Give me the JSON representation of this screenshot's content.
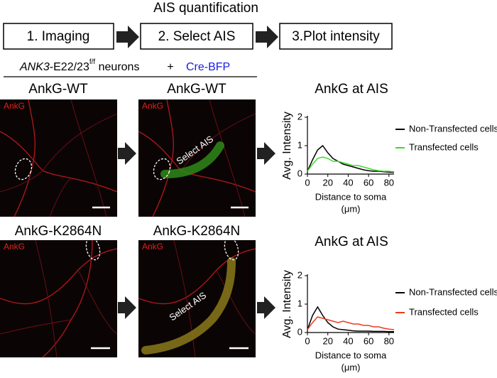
{
  "header": {
    "title": "AIS quantification",
    "steps": [
      "1. Imaging",
      "2. Select AIS",
      "3.Plot intensity"
    ]
  },
  "genotype": {
    "gene": "ANK3",
    "allele": "-E22/23",
    "superscript": "f/f",
    "cells": " neurons",
    "plus": "+",
    "construct": "Cre-BFP"
  },
  "rows": [
    {
      "images": [
        {
          "title": "AnkG-WT",
          "stain": "AnkG"
        },
        {
          "title": "AnkG-WT",
          "stain": "AnkG",
          "annotation": "Select AIS"
        }
      ]
    },
    {
      "images": [
        {
          "title": "AnkG-K2864N",
          "stain": "AnkG"
        },
        {
          "title": "AnkG-K2864N",
          "stain": "AnkG",
          "annotation": "Select AIS"
        }
      ]
    }
  ],
  "chart_data": [
    {
      "type": "line",
      "title": "AnkG at AIS",
      "ylabel": "Avg. Intensity",
      "xlabel": [
        "Distance to soma",
        "(μm)"
      ],
      "x": [
        0,
        5,
        10,
        15,
        20,
        25,
        30,
        35,
        40,
        45,
        50,
        55,
        60,
        65,
        70,
        75,
        80,
        85
      ],
      "series": [
        {
          "name": "Non-Transfected cells",
          "color": "#000000",
          "values": [
            0.1,
            0.5,
            0.85,
            1.0,
            0.75,
            0.55,
            0.45,
            0.35,
            0.3,
            0.25,
            0.2,
            0.15,
            0.12,
            0.1,
            0.1,
            0.08,
            0.07,
            0.06
          ]
        },
        {
          "name": "Transfected cells",
          "color": "#3ddc2c",
          "values": [
            0.1,
            0.35,
            0.55,
            0.6,
            0.55,
            0.45,
            0.45,
            0.4,
            0.35,
            0.3,
            0.3,
            0.25,
            0.2,
            0.15,
            0.12,
            0.1,
            0.1,
            0.08
          ]
        }
      ],
      "xlim": [
        0,
        85
      ],
      "ylim": [
        0,
        2
      ],
      "xticks": [
        0,
        20,
        40,
        60,
        80
      ],
      "yticks": [
        0,
        1,
        2
      ]
    },
    {
      "type": "line",
      "title": "AnkG at AIS",
      "ylabel": "Avg. Intensity",
      "xlabel": [
        "Distance to soma",
        "(μm)"
      ],
      "x": [
        0,
        5,
        10,
        15,
        20,
        25,
        30,
        35,
        40,
        45,
        50,
        55,
        60,
        65,
        70,
        75,
        80,
        85
      ],
      "series": [
        {
          "name": "Non-Transfected cells",
          "color": "#000000",
          "values": [
            0.1,
            0.6,
            0.9,
            0.6,
            0.35,
            0.2,
            0.12,
            0.1,
            0.08,
            0.06,
            0.05,
            0.05,
            0.05,
            0.04,
            0.04,
            0.04,
            0.03,
            0.03
          ]
        },
        {
          "name": "Transfected cells",
          "color": "#ee3a22",
          "values": [
            0.1,
            0.35,
            0.55,
            0.5,
            0.45,
            0.4,
            0.35,
            0.4,
            0.35,
            0.3,
            0.3,
            0.25,
            0.25,
            0.2,
            0.2,
            0.15,
            0.12,
            0.1
          ]
        }
      ],
      "xlim": [
        0,
        85
      ],
      "ylim": [
        0,
        2
      ],
      "xticks": [
        0,
        20,
        40,
        60,
        80
      ],
      "yticks": [
        0,
        1,
        2
      ]
    }
  ]
}
